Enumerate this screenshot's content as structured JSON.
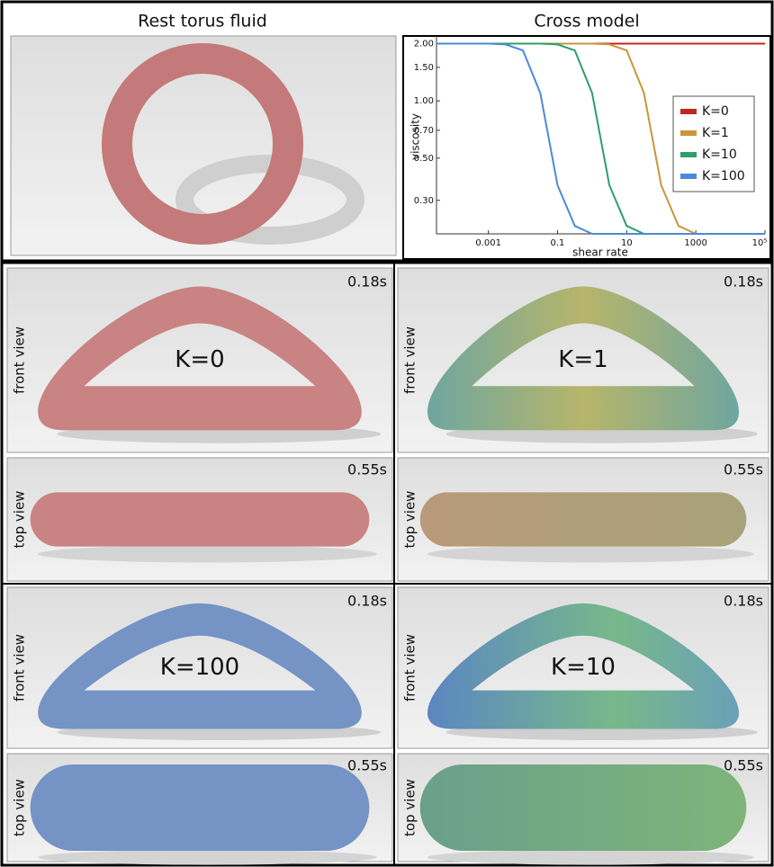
{
  "figure": {
    "rest_title": "Rest torus fluid"
  },
  "chart_data": {
    "type": "line",
    "title": "Cross model",
    "xlabel": "shear rate",
    "ylabel": "viscosity",
    "xscale": "log",
    "yscale": "log",
    "x": [
      3.16e-05,
      0.0001,
      0.000316,
      0.001,
      0.00316,
      0.01,
      0.0316,
      0.1,
      0.316,
      1,
      3.16,
      10,
      31.6,
      100,
      316,
      1000,
      3162,
      10000,
      31623,
      100000
    ],
    "series": [
      {
        "name": "K=0",
        "color": "#c0281e",
        "values": [
          2.0,
          2.0,
          2.0,
          2.0,
          2.0,
          2.0,
          2.0,
          2.0,
          2.0,
          2.0,
          2.0,
          2.0,
          2.0,
          2.0,
          2.0,
          2.0,
          2.0,
          2.0,
          2.0,
          2.0
        ]
      },
      {
        "name": "K=1",
        "color": "#c8963c",
        "values": [
          2.0,
          2.0,
          2.0,
          2.0,
          2.0,
          2.0,
          2.0,
          2.0,
          2.0,
          2.0,
          1.98,
          1.84,
          1.1,
          0.36,
          0.22,
          0.2,
          0.2,
          0.2,
          0.2,
          0.2
        ]
      },
      {
        "name": "K=10",
        "color": "#2f9e6a",
        "values": [
          2.0,
          2.0,
          2.0,
          2.0,
          2.0,
          2.0,
          2.0,
          1.98,
          1.84,
          1.1,
          0.36,
          0.22,
          0.2,
          0.2,
          0.2,
          0.2,
          0.2,
          0.2,
          0.2,
          0.2
        ]
      },
      {
        "name": "K=100",
        "color": "#4a8ad8",
        "values": [
          2.0,
          2.0,
          2.0,
          2.0,
          1.98,
          1.84,
          1.1,
          0.36,
          0.22,
          0.2,
          0.2,
          0.2,
          0.2,
          0.2,
          0.2,
          0.2,
          0.2,
          0.2,
          0.2,
          0.2
        ]
      }
    ],
    "xlim": [
      3.16e-05,
      100000
    ],
    "ylim": [
      0.2,
      2.1
    ],
    "xticks": [
      0.001,
      0.1,
      10,
      1000,
      {
        "value": 100000,
        "label": "10⁵"
      }
    ],
    "yticks": [
      {
        "value": 0.3,
        "label": "0.30"
      },
      {
        "value": 0.5,
        "label": "0.50"
      },
      {
        "value": 0.7,
        "label": "0.70"
      },
      {
        "value": 1,
        "label": "1.00"
      },
      {
        "value": 1.5,
        "label": "1.50"
      },
      {
        "value": 2,
        "label": "2.00"
      }
    ],
    "legend": "center right",
    "grid": false
  },
  "panels": [
    {
      "k_label": "K=0",
      "front_view_label": "front view",
      "front_time": "0.18s",
      "top_view_label": "top view",
      "top_time": "0.55s"
    },
    {
      "k_label": "K=1",
      "front_view_label": "front view",
      "front_time": "0.18s",
      "top_view_label": "top view",
      "top_time": "0.55s"
    },
    {
      "k_label": "K=100",
      "front_view_label": "front view",
      "front_time": "0.18s",
      "top_view_label": "top view",
      "top_time": "0.55s"
    },
    {
      "k_label": "K=10",
      "front_view_label": "front view",
      "front_time": "0.18s",
      "top_view_label": "top view",
      "top_time": "0.55s"
    }
  ]
}
